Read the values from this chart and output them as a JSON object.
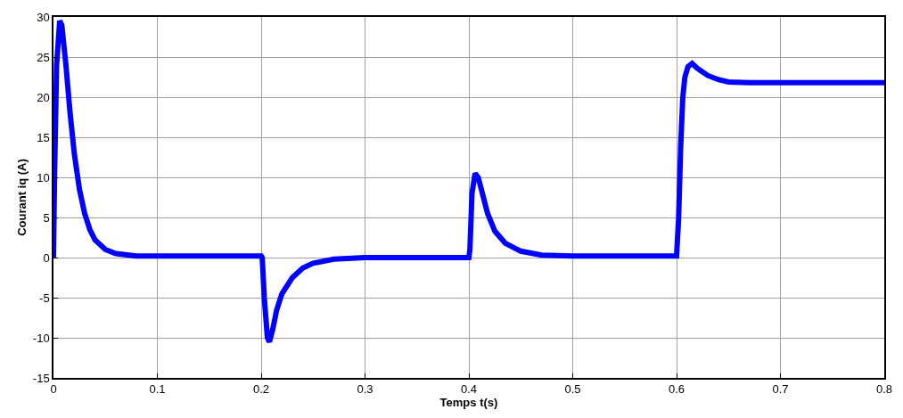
{
  "chart_data": {
    "type": "line",
    "xlabel": "Temps t(s)",
    "ylabel": "Courant iq (A)",
    "xlim": [
      0,
      0.8
    ],
    "xticks": [
      0,
      0.1,
      0.2,
      0.3,
      0.4,
      0.5,
      0.6,
      0.7,
      0.8
    ],
    "ylim": [
      -15,
      30
    ],
    "yticks": [
      -15,
      -10,
      -5,
      0,
      5,
      10,
      15,
      20,
      25,
      30
    ],
    "grid": true,
    "line_style": "solid",
    "marker": "none",
    "series": [
      {
        "color": "#0000ff",
        "x": [
          0,
          0.001,
          0.003,
          0.006,
          0.008,
          0.012,
          0.016,
          0.02,
          0.025,
          0.03,
          0.035,
          0.04,
          0.05,
          0.06,
          0.08,
          0.1,
          0.2,
          0.201,
          0.203,
          0.206,
          0.208,
          0.211,
          0.215,
          0.22,
          0.23,
          0.24,
          0.25,
          0.27,
          0.3,
          0.4,
          0.401,
          0.403,
          0.406,
          0.409,
          0.413,
          0.418,
          0.425,
          0.435,
          0.45,
          0.47,
          0.5,
          0.6,
          0.602,
          0.604,
          0.606,
          0.608,
          0.611,
          0.615,
          0.62,
          0.63,
          0.64,
          0.65,
          0.67,
          0.7,
          0.8
        ],
        "values": [
          0,
          10,
          24,
          29.5,
          29,
          24,
          18,
          13,
          8.5,
          5.5,
          3.5,
          2.2,
          1,
          0.5,
          0.2,
          0.2,
          0.2,
          0,
          -5,
          -10,
          -10.5,
          -9,
          -6.5,
          -4.5,
          -2.5,
          -1.3,
          -0.7,
          -0.2,
          0,
          0,
          1,
          8,
          10.5,
          10,
          8,
          5.5,
          3.3,
          1.8,
          0.8,
          0.3,
          0.2,
          0.2,
          5,
          14,
          20,
          22.5,
          23.8,
          24.2,
          23.6,
          22.7,
          22.2,
          21.9,
          21.8,
          21.8,
          21.8
        ]
      }
    ]
  }
}
